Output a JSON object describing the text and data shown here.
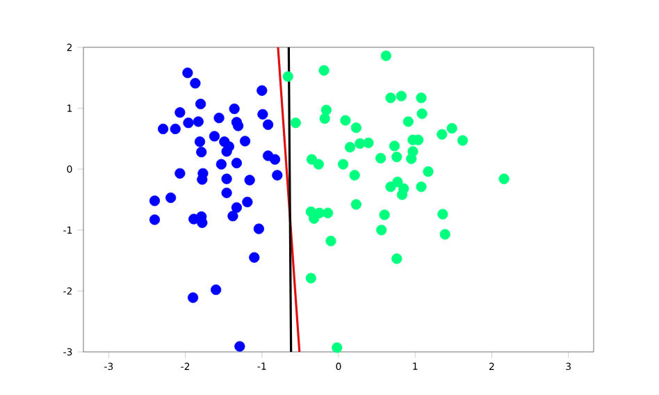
{
  "chart_data": {
    "type": "scatter",
    "xlim": [
      -3.33,
      3.33
    ],
    "ylim": [
      -3,
      2
    ],
    "xticks": [
      -3,
      -2,
      -1,
      0,
      1,
      2,
      3
    ],
    "yticks": [
      -3,
      -2,
      -1,
      0,
      1,
      2
    ],
    "grid": false,
    "series": [
      {
        "marker": "circle",
        "color": "#0000ff",
        "x": [
          -1.97,
          -1.87,
          -1.0,
          -1.8,
          -2.07,
          -1.36,
          -0.99,
          -1.96,
          -1.83,
          -1.56,
          -1.33,
          -1.31,
          -0.92,
          -2.29,
          -2.13,
          -1.62,
          -1.81,
          -1.49,
          -1.22,
          -1.43,
          -1.46,
          -1.79,
          -0.92,
          -0.83,
          -1.53,
          -1.33,
          -2.07,
          -1.77,
          -1.78,
          -1.46,
          -1.16,
          -0.8,
          -1.46,
          -2.4,
          -2.19,
          -1.19,
          -1.33,
          -2.4,
          -1.89,
          -1.79,
          -1.78,
          -1.38,
          -1.04,
          -1.1,
          -1.6,
          -1.9,
          -1.29
        ],
        "values": [
          1.58,
          1.41,
          1.29,
          1.07,
          0.93,
          0.99,
          0.9,
          0.76,
          0.78,
          0.84,
          0.77,
          0.71,
          0.73,
          0.66,
          0.66,
          0.54,
          0.45,
          0.45,
          0.46,
          0.37,
          0.29,
          0.28,
          0.22,
          0.16,
          0.08,
          0.1,
          -0.07,
          -0.07,
          -0.17,
          -0.16,
          -0.18,
          -0.1,
          -0.39,
          -0.52,
          -0.47,
          -0.54,
          -0.63,
          -0.83,
          -0.82,
          -0.78,
          -0.88,
          -0.77,
          -0.98,
          -1.45,
          -1.98,
          -2.11,
          -2.91
        ]
      },
      {
        "marker": "circle",
        "color": "#00ff7f",
        "x": [
          -0.66,
          -0.19,
          0.62,
          0.68,
          0.82,
          1.08,
          -0.16,
          -0.18,
          1.09,
          0.09,
          0.23,
          0.91,
          -0.56,
          1.48,
          1.35,
          1.62,
          0.15,
          0.28,
          0.39,
          0.73,
          0.97,
          1.04,
          0.97,
          0.76,
          0.55,
          0.95,
          -0.35,
          -0.26,
          0.06,
          1.17,
          0.21,
          2.16,
          0.68,
          0.77,
          0.85,
          1.08,
          0.23,
          -0.36,
          -0.25,
          -0.14,
          -0.32,
          0.83,
          0.6,
          1.36,
          0.56,
          1.39,
          -0.1,
          0.76,
          -0.36,
          -0.02
        ],
        "values": [
          1.52,
          1.62,
          1.86,
          1.17,
          1.2,
          1.17,
          0.97,
          0.83,
          0.91,
          0.8,
          0.68,
          0.78,
          0.76,
          0.67,
          0.57,
          0.47,
          0.36,
          0.42,
          0.43,
          0.38,
          0.48,
          0.48,
          0.29,
          0.2,
          0.18,
          0.17,
          0.16,
          0.08,
          0.08,
          -0.04,
          -0.1,
          -0.16,
          -0.29,
          -0.21,
          -0.32,
          -0.29,
          -0.58,
          -0.7,
          -0.72,
          -0.72,
          -0.81,
          -0.42,
          -0.75,
          -0.74,
          -1.0,
          -1.07,
          -1.18,
          -1.47,
          -1.79,
          -2.93
        ]
      },
      {
        "type": "line",
        "marker": "none",
        "color": "#dd1111",
        "x": [
          -0.79,
          -0.51
        ],
        "values": [
          2,
          -3
        ]
      },
      {
        "type": "line",
        "marker": "none",
        "color": "#000000",
        "x": [
          -0.65,
          -0.62
        ],
        "values": [
          2,
          -3
        ]
      }
    ]
  }
}
